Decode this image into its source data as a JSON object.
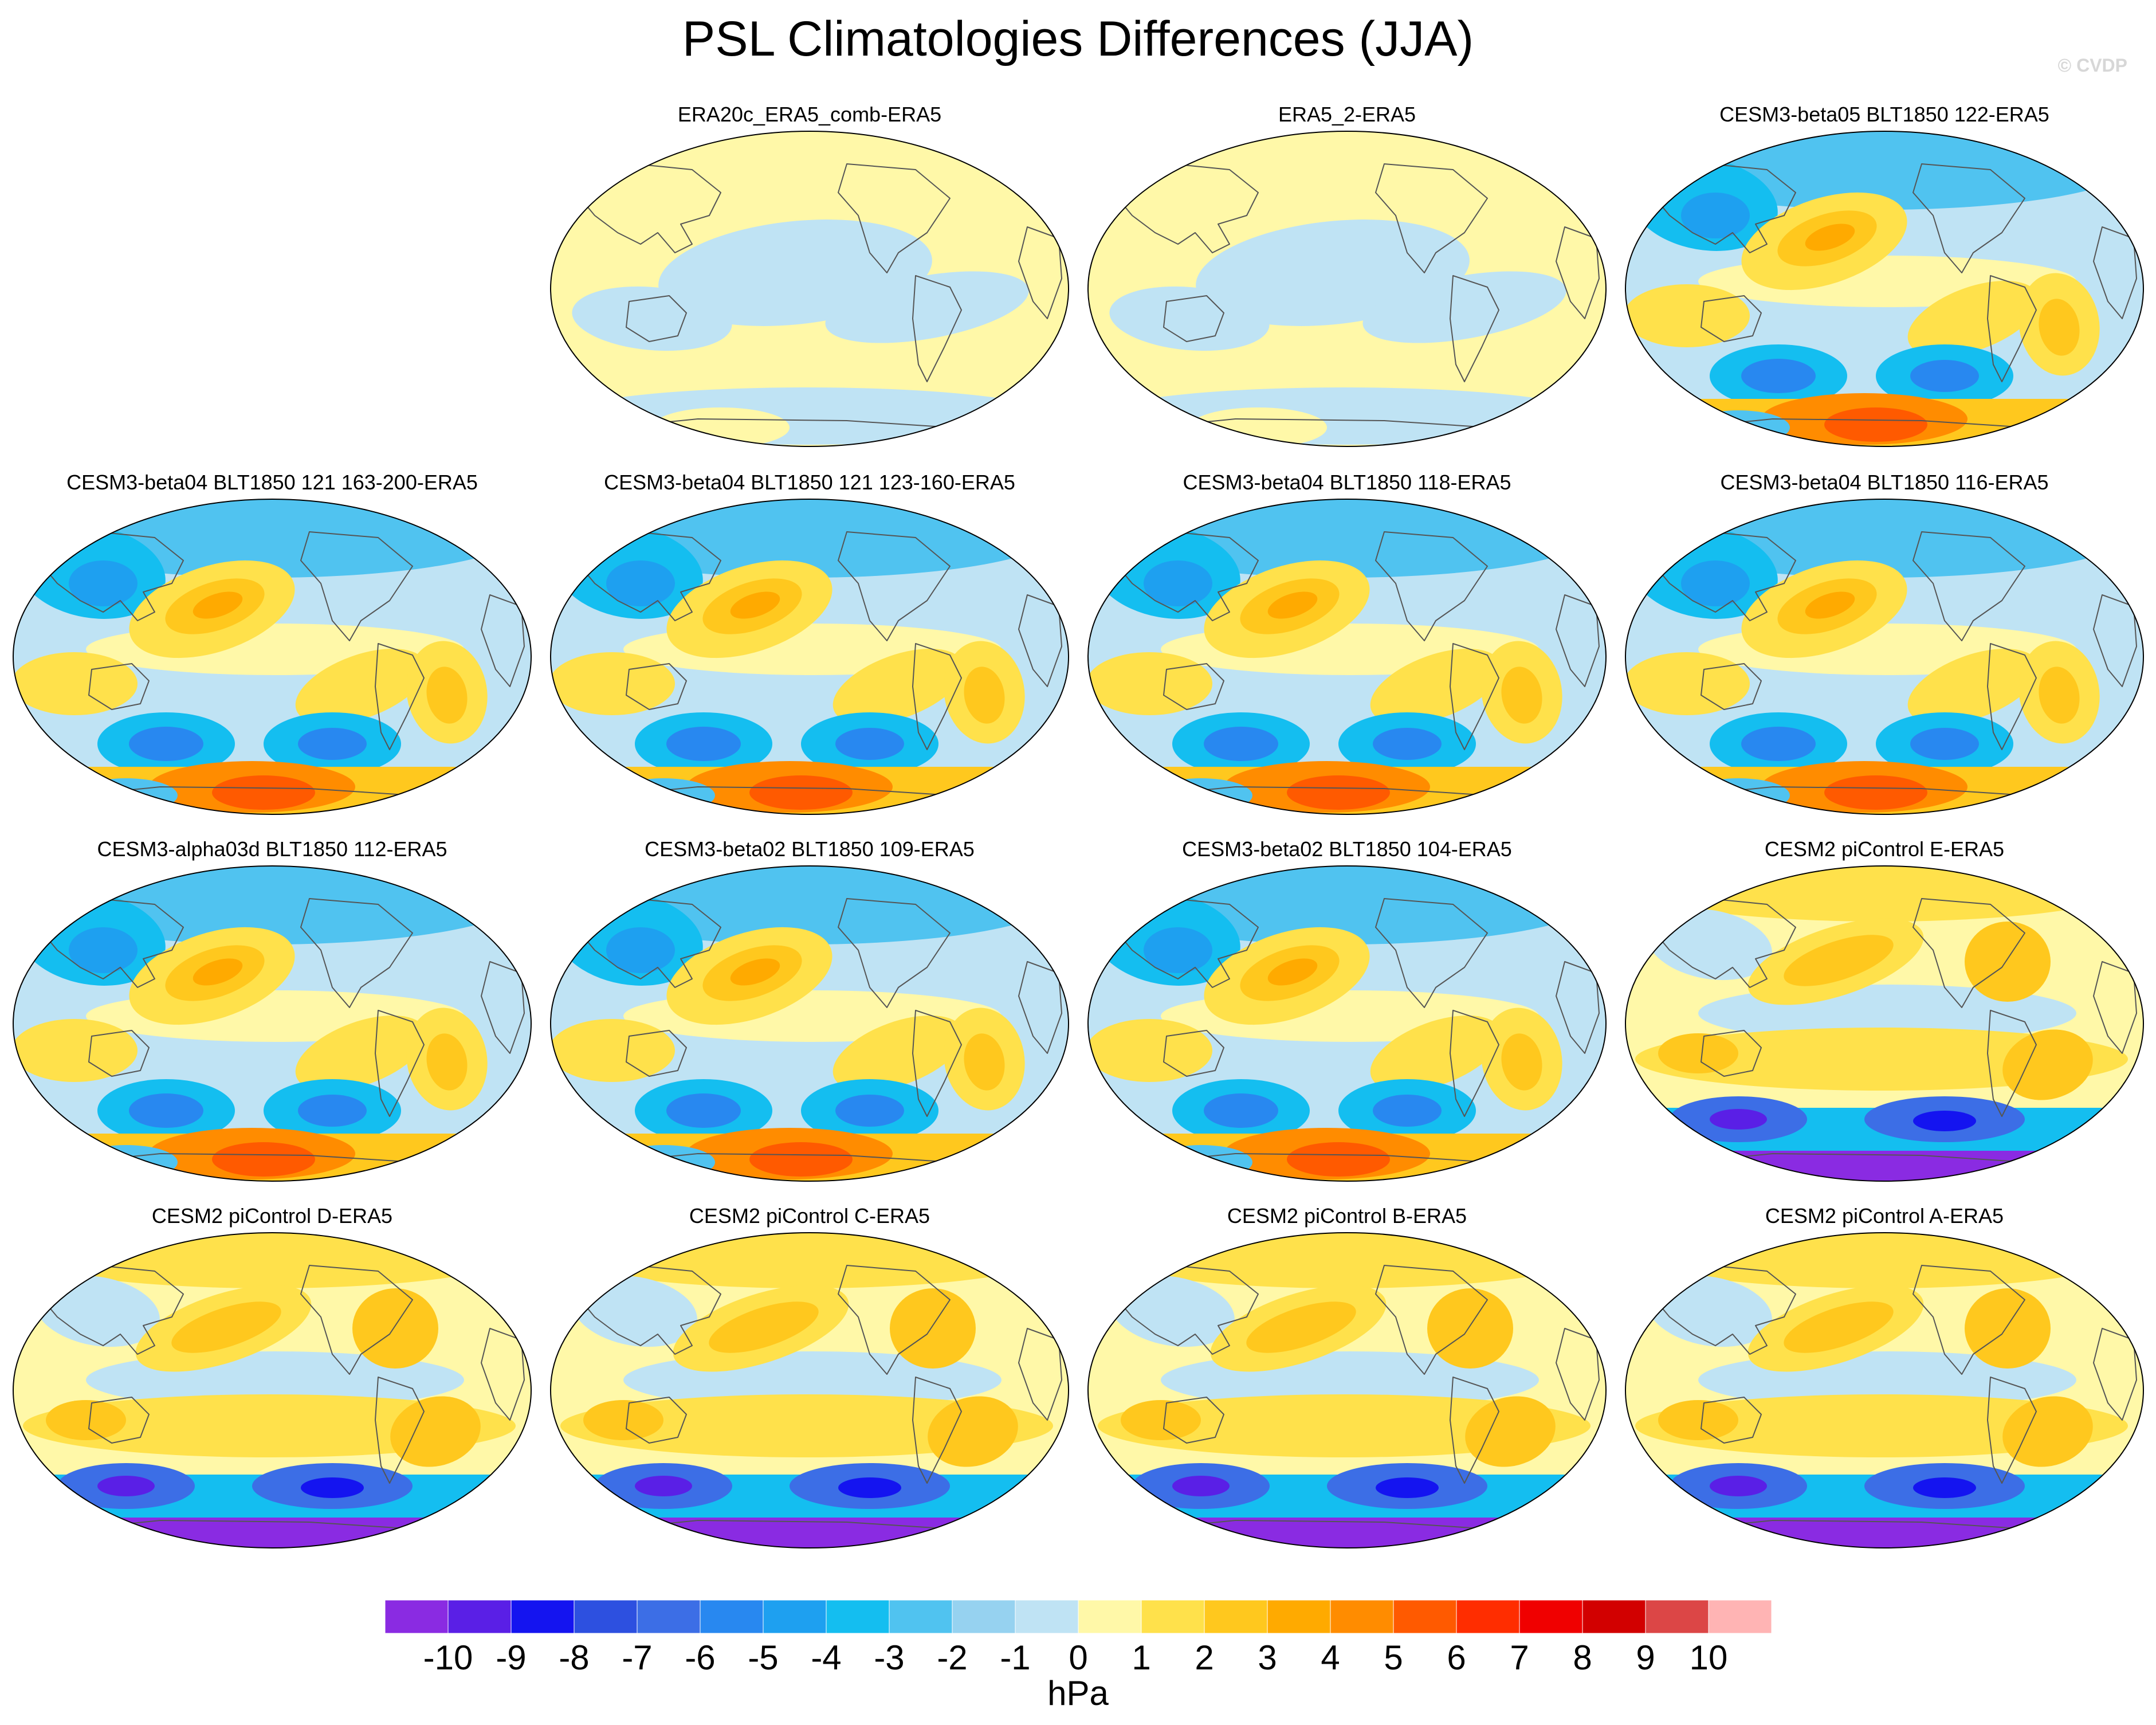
{
  "title": "PSL Climatologies Differences (JJA)",
  "watermark": "© CVDP",
  "chart_data": {
    "type": "heatmap",
    "title": "PSL Climatologies Differences (JJA)",
    "projection": "Robinson-style global map, Pacific-centered",
    "units": "hPa",
    "panels": [
      {
        "name": "ERA20c_ERA5_comb-ERA5",
        "row": 0,
        "col": 1,
        "pattern": "near-zero"
      },
      {
        "name": "ERA5_2-ERA5",
        "row": 0,
        "col": 2,
        "pattern": "near-zero"
      },
      {
        "name": "CESM3-beta05 BLT1850 122-ERA5",
        "row": 0,
        "col": 3,
        "pattern": "cesm3"
      },
      {
        "name": "CESM3-beta04 BLT1850 121 163-200-ERA5",
        "row": 1,
        "col": 0,
        "pattern": "cesm3"
      },
      {
        "name": "CESM3-beta04 BLT1850 121 123-160-ERA5",
        "row": 1,
        "col": 1,
        "pattern": "cesm3"
      },
      {
        "name": "CESM3-beta04 BLT1850 118-ERA5",
        "row": 1,
        "col": 2,
        "pattern": "cesm3"
      },
      {
        "name": "CESM3-beta04 BLT1850 116-ERA5",
        "row": 1,
        "col": 3,
        "pattern": "cesm3"
      },
      {
        "name": "CESM3-alpha03d BLT1850 112-ERA5",
        "row": 2,
        "col": 0,
        "pattern": "cesm3"
      },
      {
        "name": "CESM3-beta02 BLT1850 109-ERA5",
        "row": 2,
        "col": 1,
        "pattern": "cesm3"
      },
      {
        "name": "CESM3-beta02 BLT1850 104-ERA5",
        "row": 2,
        "col": 2,
        "pattern": "cesm3"
      },
      {
        "name": "CESM2 piControl E-ERA5",
        "row": 2,
        "col": 3,
        "pattern": "cesm2"
      },
      {
        "name": "CESM2 piControl D-ERA5",
        "row": 3,
        "col": 0,
        "pattern": "cesm2"
      },
      {
        "name": "CESM2 piControl C-ERA5",
        "row": 3,
        "col": 1,
        "pattern": "cesm2"
      },
      {
        "name": "CESM2 piControl B-ERA5",
        "row": 3,
        "col": 2,
        "pattern": "cesm2"
      },
      {
        "name": "CESM2 piControl A-ERA5",
        "row": 3,
        "col": 3,
        "pattern": "cesm2"
      }
    ],
    "colorbar": {
      "label": "hPa",
      "ticks": [
        "-10",
        "-9",
        "-8",
        "-7",
        "-6",
        "-5",
        "-4",
        "-3",
        "-2",
        "-1",
        "0",
        "1",
        "2",
        "3",
        "4",
        "5",
        "6",
        "7",
        "8",
        "9",
        "10"
      ],
      "colors": [
        "#8a2be2",
        "#5a1fe6",
        "#1414f0",
        "#2d50e0",
        "#3c6ee6",
        "#2888f0",
        "#1ea0f0",
        "#14bef0",
        "#50c3f0",
        "#96d2f0",
        "#bfe3f4",
        "#fff8a8",
        "#ffe14b",
        "#ffc81e",
        "#ffaa00",
        "#ff8c00",
        "#ff5a00",
        "#ff2d00",
        "#f00000",
        "#d20000",
        "#dc4646",
        "#ffb4b4"
      ]
    }
  }
}
